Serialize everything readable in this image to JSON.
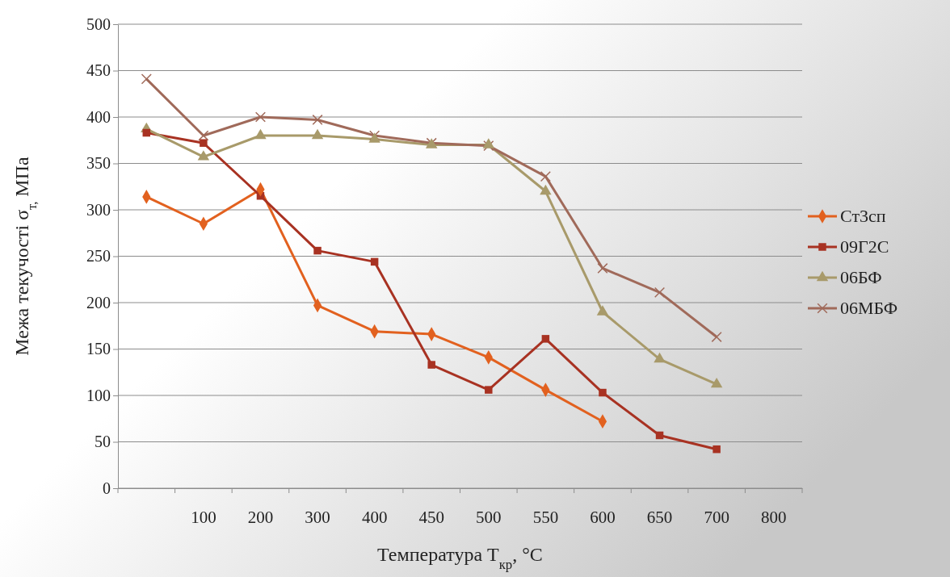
{
  "chart_data": {
    "type": "line",
    "xlabel": "Температура T$_{кр}$, °C",
    "ylabel": "Межа текучості σ$_{т,}$ МПа",
    "categories": [
      null,
      "100",
      "200",
      "300",
      "400",
      "450",
      "500",
      "550",
      "600",
      "650",
      "700",
      "800"
    ],
    "ylim": [
      0,
      500
    ],
    "yticks": [
      0,
      50,
      100,
      150,
      200,
      250,
      300,
      350,
      400,
      450,
      500
    ],
    "grid": "y",
    "legend": "right",
    "series": [
      {
        "name": "Ст3сп",
        "color": "#e2611f",
        "marker": "diamond",
        "values": [
          314,
          285,
          322,
          197,
          169,
          166,
          141,
          106,
          72,
          null,
          null,
          null
        ]
      },
      {
        "name": "09Г2С",
        "color": "#a83222",
        "marker": "square",
        "values": [
          383,
          372,
          315,
          256,
          244,
          133,
          106,
          161,
          103,
          57,
          42,
          null
        ]
      },
      {
        "name": "06БФ",
        "color": "#a89a6a",
        "marker": "triangle",
        "values": [
          387,
          357,
          380,
          380,
          376,
          370,
          370,
          320,
          190,
          139,
          112,
          null
        ]
      },
      {
        "name": "06МБФ",
        "color": "#a06a5a",
        "marker": "cross",
        "values": [
          441,
          380,
          400,
          397,
          380,
          372,
          369,
          336,
          237,
          211,
          163,
          null
        ]
      }
    ]
  }
}
